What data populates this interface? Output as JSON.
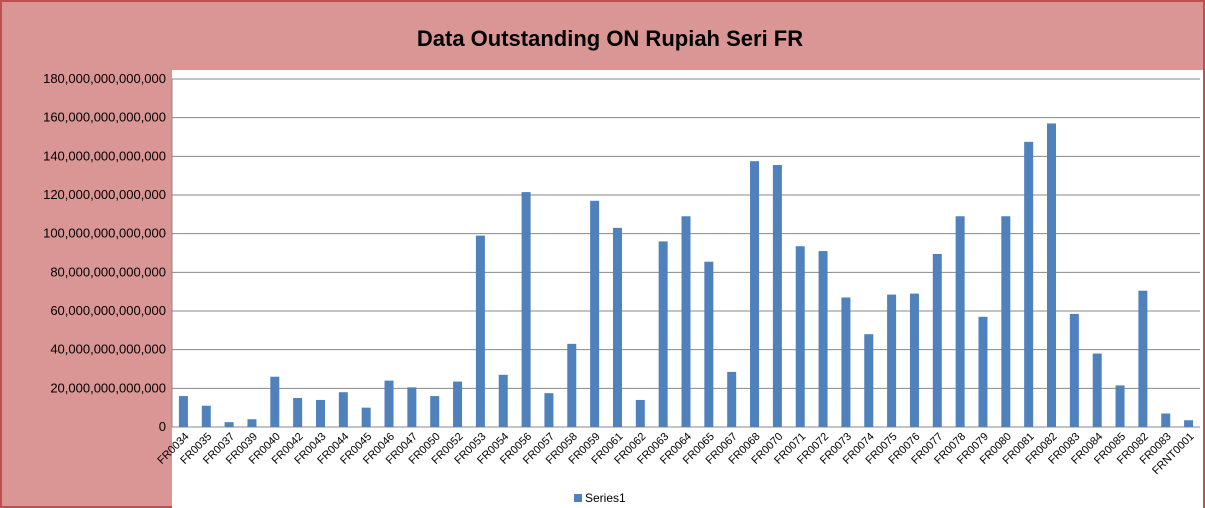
{
  "chart_data": {
    "type": "bar",
    "title": "Data Outstanding ON Rupiah Seri FR",
    "categories": [
      "FR0034",
      "FR0035",
      "FR0037",
      "FR0039",
      "FR0040",
      "FR0042",
      "FR0043",
      "FR0044",
      "FR0045",
      "FR0046",
      "FR0047",
      "FR0050",
      "FR0052",
      "FR0053",
      "FR0054",
      "FR0056",
      "FR0057",
      "FR0058",
      "FR0059",
      "FR0061",
      "FR0062",
      "FR0063",
      "FR0064",
      "FR0065",
      "FR0067",
      "FR0068",
      "FR0070",
      "FR0071",
      "FR0072",
      "FR0073",
      "FR0074",
      "FR0075",
      "FR0076",
      "FR0077",
      "FR0078",
      "FR0079",
      "FR0080",
      "FR0081",
      "FR0082",
      "FR0083",
      "FR0084",
      "FR0085",
      "FR0082",
      "FR0083",
      "FRNT0001"
    ],
    "series": [
      {
        "name": "Series1",
        "color": "#4f81bd",
        "values": [
          16000000000000.0,
          11000000000000.0,
          2500000000000.0,
          4000000000000.0,
          26000000000000.0,
          15000000000000.0,
          14000000000000.0,
          18000000000000.0,
          10000000000000.0,
          24000000000000.0,
          20500000000000.0,
          16000000000000.0,
          23500000000000.0,
          99000000000000.0,
          27000000000000.0,
          121500000000000.0,
          17500000000000.0,
          43000000000000.0,
          117000000000000.0,
          103000000000000.0,
          14000000000000.0,
          96000000000000.0,
          109000000000000.0,
          85500000000000.0,
          28500000000000.0,
          137500000000000.0,
          135500000000000.0,
          93500000000000.0,
          91000000000000.0,
          67000000000000.0,
          48000000000000.0,
          68500000000000.0,
          69000000000000.0,
          89500000000000.0,
          109000000000000.0,
          57000000000000.0,
          109000000000000.0,
          147500000000000.0,
          157000000000000.0,
          58500000000000.0,
          38000000000000.0,
          21500000000000.0,
          70500000000000.0,
          7000000000000.0,
          3500000000000.0
        ]
      }
    ],
    "ylim": [
      0,
      180000000000000.0
    ],
    "yticks": [
      0,
      {
        "value": 20000000000000.0,
        "label": "20,000,000,000,000"
      },
      {
        "value": 40000000000000.0,
        "label": "40,000,000,000,000"
      },
      {
        "value": 60000000000000.0,
        "label": "60,000,000,000,000"
      },
      {
        "value": 80000000000000.0,
        "label": "80,000,000,000,000"
      },
      {
        "value": 100000000000000.0,
        "label": "100,000,000,000,000"
      },
      {
        "value": 120000000000000.0,
        "label": "120,000,000,000,000"
      },
      {
        "value": 140000000000000.0,
        "label": "140,000,000,000,000"
      },
      {
        "value": 160000000000000.0,
        "label": "160,000,000,000,000"
      },
      {
        "value": 180000000000000.0,
        "label": "180,000,000,000,000"
      }
    ],
    "grid": true
  }
}
